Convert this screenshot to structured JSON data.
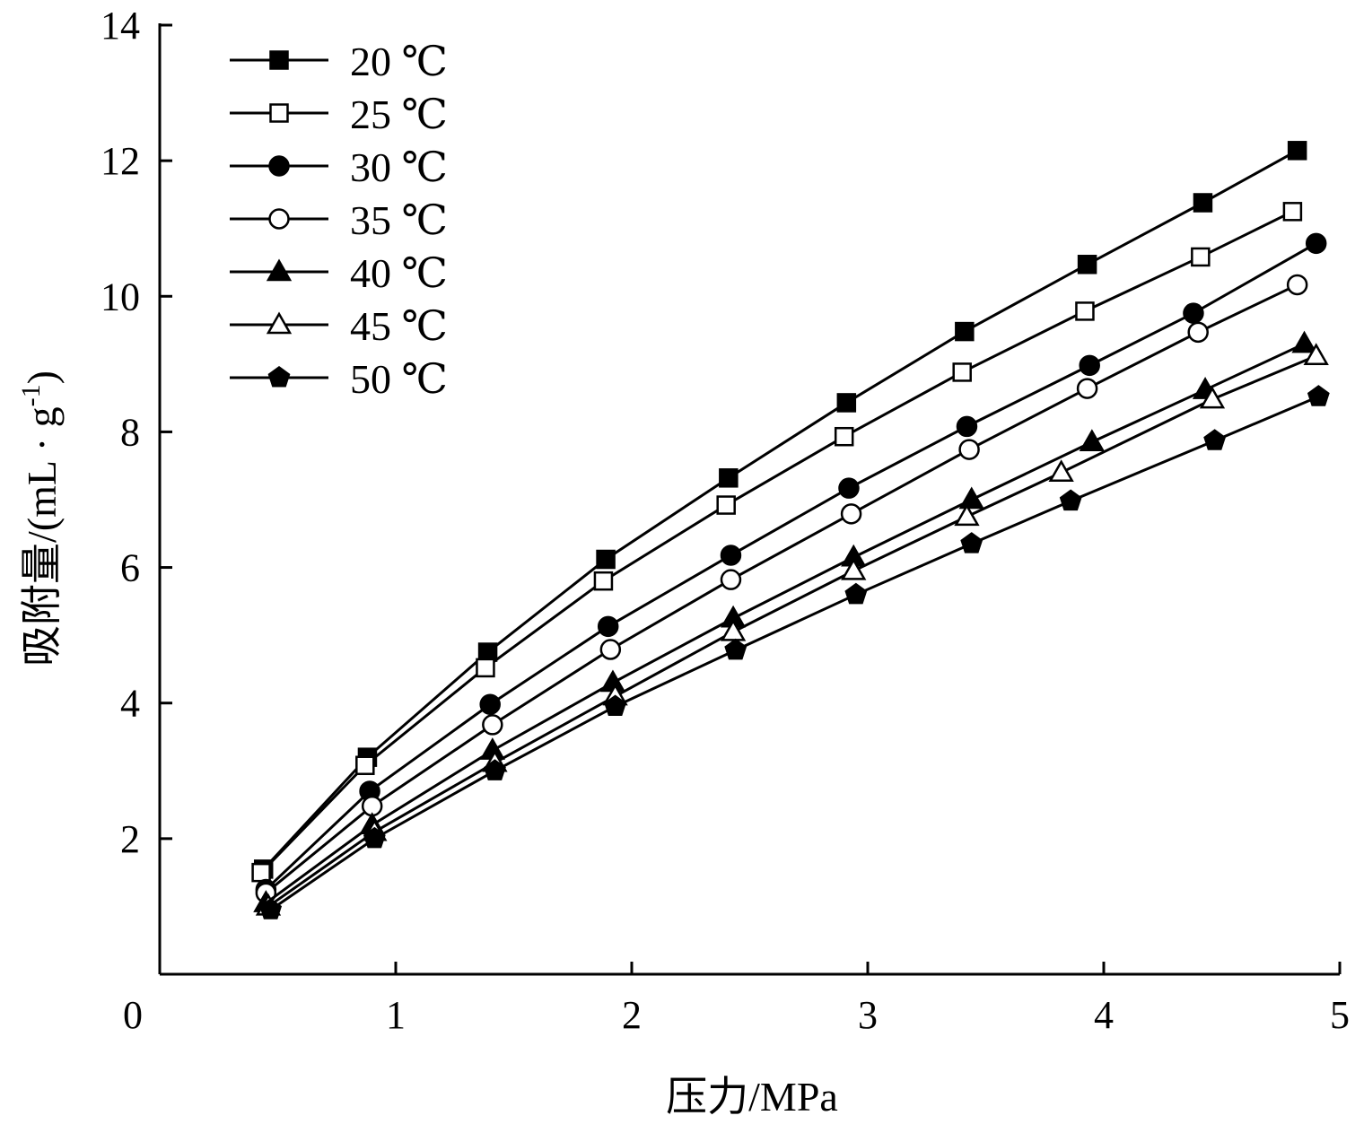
{
  "chart_data": {
    "type": "line",
    "xlabel": "压力/MPa",
    "ylabel": "吸附量/(mL·g⁻¹)",
    "ylabel_parts": {
      "before": "吸附量/(mL · g",
      "sup": "-1",
      "after": ")"
    },
    "xlim": [
      0,
      5
    ],
    "ylim": [
      0,
      14
    ],
    "xticks": [
      0,
      1,
      2,
      3,
      4,
      5
    ],
    "yticks": [
      2,
      4,
      6,
      8,
      10,
      12,
      14
    ],
    "grid": false,
    "legend_position": "top-left",
    "series": [
      {
        "name": "20 ℃",
        "marker": "square-filled",
        "x": [
          0.44,
          0.88,
          1.39,
          1.89,
          2.41,
          2.91,
          3.41,
          3.93,
          4.42,
          4.82
        ],
        "y": [
          1.55,
          3.2,
          4.75,
          6.12,
          7.32,
          8.43,
          9.48,
          10.47,
          11.38,
          12.15
        ]
      },
      {
        "name": "25 ℃",
        "marker": "square-open",
        "x": [
          0.43,
          0.87,
          1.38,
          1.88,
          2.4,
          2.9,
          3.4,
          3.92,
          4.41,
          4.8
        ],
        "y": [
          1.5,
          3.08,
          4.52,
          5.8,
          6.92,
          7.93,
          8.88,
          9.78,
          10.58,
          11.25
        ]
      },
      {
        "name": "30 ℃",
        "marker": "circle-filled",
        "x": [
          0.45,
          0.89,
          1.4,
          1.9,
          2.42,
          2.92,
          3.42,
          3.94,
          4.38,
          4.9
        ],
        "y": [
          1.25,
          2.7,
          3.98,
          5.13,
          6.18,
          7.17,
          8.08,
          8.98,
          9.75,
          10.78
        ]
      },
      {
        "name": "35 ℃",
        "marker": "circle-open",
        "x": [
          0.45,
          0.9,
          1.41,
          1.91,
          2.42,
          2.93,
          3.43,
          3.93,
          4.4,
          4.82
        ],
        "y": [
          1.2,
          2.48,
          3.68,
          4.79,
          5.82,
          6.79,
          7.74,
          8.64,
          9.47,
          10.17
        ]
      },
      {
        "name": "40 ℃",
        "marker": "triangle-filled",
        "x": [
          0.45,
          0.9,
          1.41,
          1.92,
          2.43,
          2.94,
          3.44,
          3.95,
          4.43,
          4.85
        ],
        "y": [
          1.05,
          2.2,
          3.3,
          4.3,
          5.25,
          6.15,
          7.0,
          7.85,
          8.62,
          9.3
        ]
      },
      {
        "name": "45 ℃",
        "marker": "triangle-open",
        "x": [
          0.46,
          0.91,
          1.42,
          1.93,
          2.43,
          2.94,
          3.42,
          3.82,
          4.46,
          4.9
        ],
        "y": [
          1.0,
          2.1,
          3.12,
          4.1,
          5.05,
          5.95,
          6.75,
          7.4,
          8.48,
          9.12
        ]
      },
      {
        "name": "50 ℃",
        "marker": "pentagon-filled",
        "x": [
          0.47,
          0.91,
          1.42,
          1.93,
          2.44,
          2.95,
          3.44,
          3.86,
          4.47,
          4.91
        ],
        "y": [
          0.95,
          2.0,
          3.0,
          3.95,
          4.78,
          5.6,
          6.35,
          6.98,
          7.87,
          8.52
        ]
      }
    ]
  }
}
